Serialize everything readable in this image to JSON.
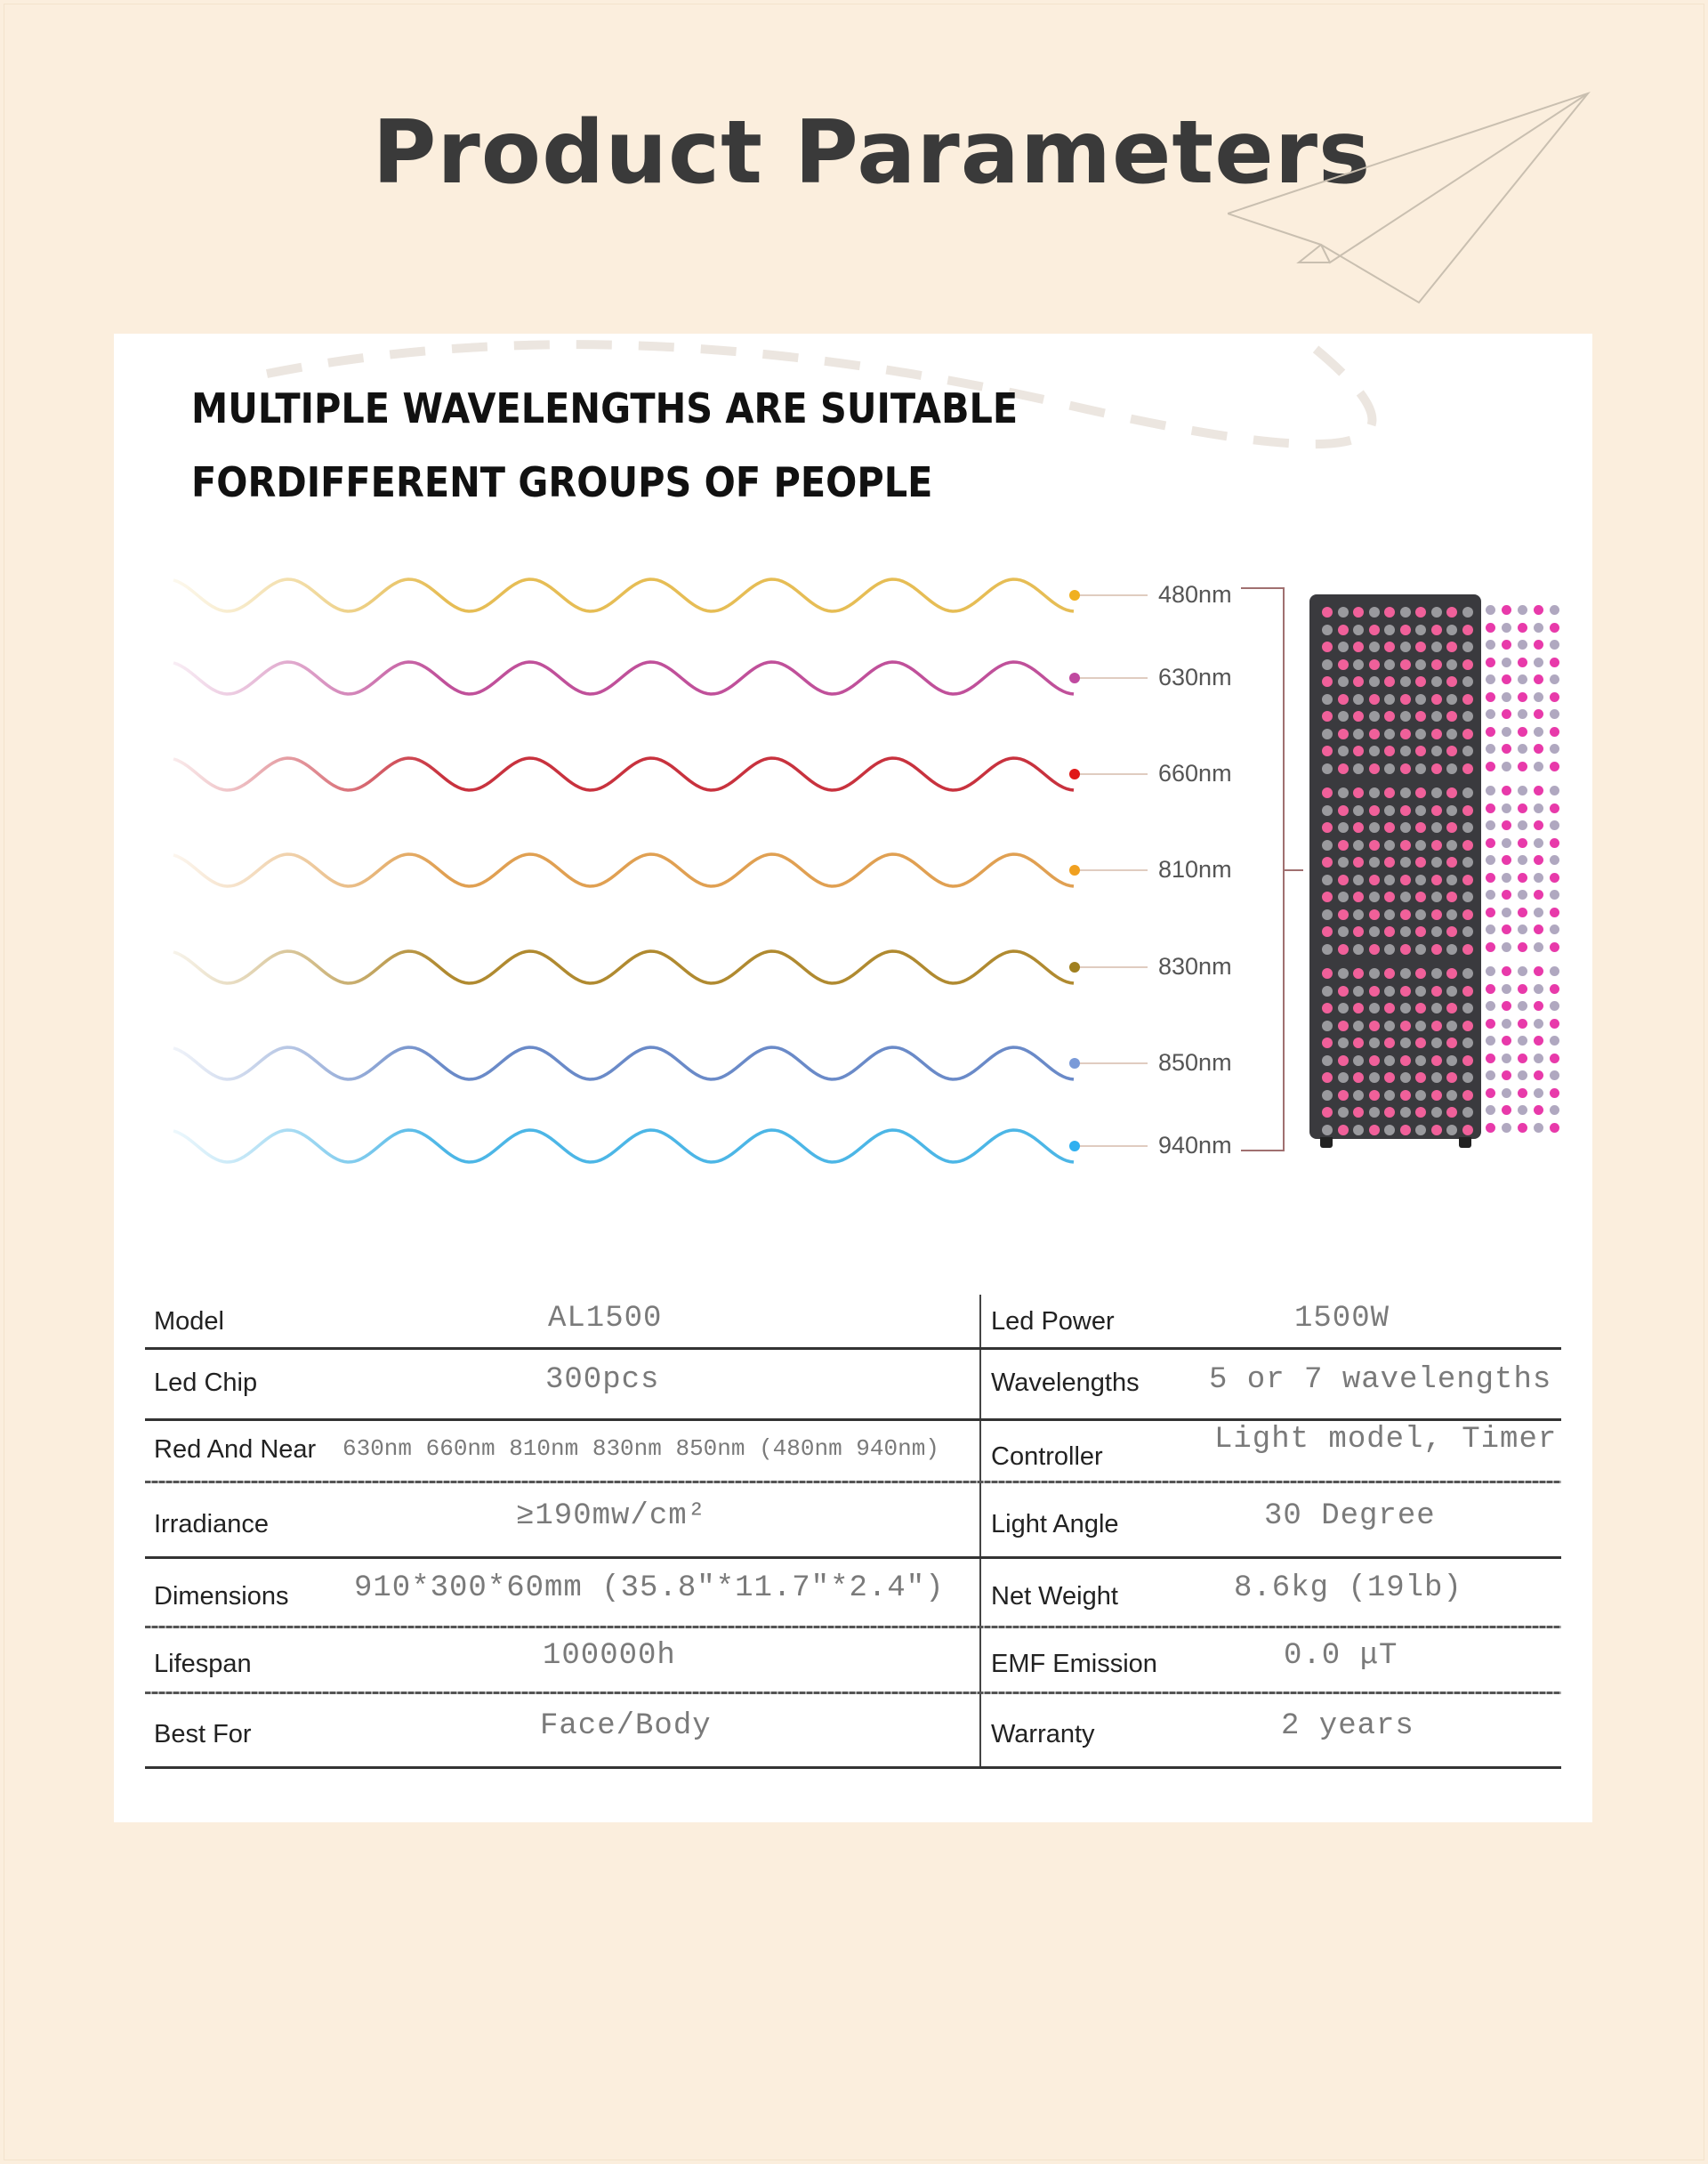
{
  "title": "Product Parameters",
  "heading": {
    "line1": "MULTIPLE WAVELENGTHS ARE SUITABLE",
    "line2": "FORDIFFERENT GROUPS OF PEOPLE"
  },
  "wavelengths": [
    {
      "label": "480nm",
      "color": "#e6bd55",
      "dot": "#f0b020"
    },
    {
      "label": "630nm",
      "color": "#c0509a",
      "dot": "#c04aa0"
    },
    {
      "label": "660nm",
      "color": "#c8323e",
      "dot": "#e01818"
    },
    {
      "label": "810nm",
      "color": "#e0a052",
      "dot": "#f0a020"
    },
    {
      "label": "830nm",
      "color": "#b08a30",
      "dot": "#a08020"
    },
    {
      "label": "850nm",
      "color": "#6a8ac8",
      "dot": "#7a9ad8"
    },
    {
      "label": "940nm",
      "color": "#4cb6e6",
      "dot": "#30b0f0"
    }
  ],
  "colors": {
    "background": "#fbeedd",
    "led_pink": "#f0609a",
    "device": "#3a3a3e"
  },
  "specs": {
    "left": [
      {
        "label": "Model",
        "value": "AL1500"
      },
      {
        "label": "Led Chip",
        "value": "300pcs"
      },
      {
        "label": "Red And Near",
        "value": "630nm 660nm 810nm 830nm 850nm (480nm 940nm)"
      },
      {
        "label": "Irradiance",
        "value": "≥190mw/cm²"
      },
      {
        "label": "Dimensions",
        "value": "910*300*60mm (35.8\"*11.7\"*2.4\")"
      },
      {
        "label": "Lifespan",
        "value": "100000h"
      },
      {
        "label": "Best For",
        "value": "Face/Body"
      }
    ],
    "right": [
      {
        "label": "Led Power",
        "value": "1500W"
      },
      {
        "label": "Wavelengths",
        "value": "5 or 7 wavelengths"
      },
      {
        "label": "Controller",
        "value": "Light model, Timer"
      },
      {
        "label": "Light Angle",
        "value": "30 Degree"
      },
      {
        "label": "Net Weight",
        "value": "8.6kg (19lb)"
      },
      {
        "label": "EMF Emission",
        "value": "0.0 μT"
      },
      {
        "label": "Warranty",
        "value": "2 years"
      }
    ]
  }
}
